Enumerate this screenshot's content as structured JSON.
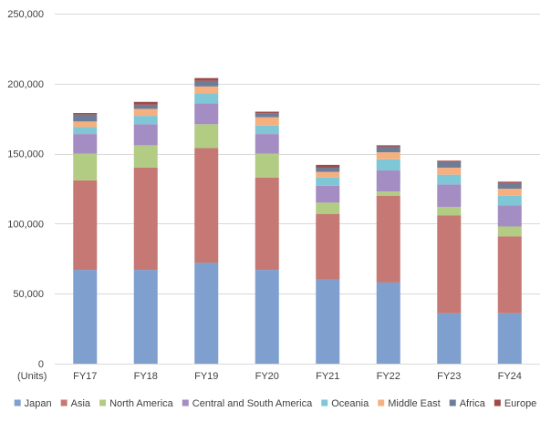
{
  "chart_data": {
    "type": "bar",
    "stacked": true,
    "title": "",
    "xlabel": "",
    "ylabel": "",
    "unit_label": "(Units)",
    "categories": [
      "FY17",
      "FY18",
      "FY19",
      "FY20",
      "FY21",
      "FY22",
      "FY23",
      "FY24"
    ],
    "ylim": [
      0,
      250000
    ],
    "yticks": [
      0,
      50000,
      100000,
      150000,
      200000,
      250000
    ],
    "ytick_labels": [
      "0",
      "50,000",
      "100,000",
      "150,000",
      "200,000",
      "250,000"
    ],
    "grid": true,
    "legend_position": "bottom",
    "series": [
      {
        "name": "Japan",
        "color": "#7F9FCF",
        "values": [
          67000,
          67000,
          72000,
          67000,
          60000,
          58000,
          36000,
          36000
        ]
      },
      {
        "name": "Asia",
        "color": "#C57874",
        "values": [
          64000,
          73000,
          82000,
          66000,
          47000,
          62000,
          70000,
          55000
        ]
      },
      {
        "name": "North America",
        "color": "#B3CC84",
        "values": [
          19000,
          16000,
          17000,
          17000,
          8000,
          3000,
          6000,
          7000
        ]
      },
      {
        "name": "Central and South America",
        "color": "#A48DC2",
        "values": [
          14000,
          15000,
          15000,
          14000,
          12000,
          15000,
          16000,
          15000
        ]
      },
      {
        "name": "Oceania",
        "color": "#7FC6D6",
        "values": [
          5000,
          6000,
          7000,
          6000,
          6000,
          8000,
          7000,
          7000
        ]
      },
      {
        "name": "Middle East",
        "color": "#F6B07F",
        "values": [
          4000,
          5000,
          5000,
          6000,
          4000,
          5000,
          5000,
          5000
        ]
      },
      {
        "name": "Africa",
        "color": "#6E7D97",
        "values": [
          5000,
          3000,
          4000,
          3000,
          3000,
          4000,
          4000,
          4000
        ]
      },
      {
        "name": "Europe",
        "color": "#9E4A4A",
        "values": [
          1000,
          2000,
          2000,
          1000,
          2000,
          1000,
          1000,
          1000
        ]
      }
    ]
  }
}
